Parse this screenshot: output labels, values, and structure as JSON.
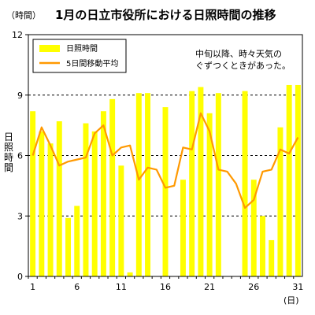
{
  "chart_data": {
    "type": "bar",
    "title": "1月の日立市役所における日照時間の推移",
    "yunit": "（時間）",
    "ylabel": "日照時間",
    "xunit": "(日)",
    "ylim": [
      0,
      12
    ],
    "yticks": [
      0,
      3,
      6,
      9,
      12
    ],
    "xticks": [
      1,
      6,
      11,
      16,
      21,
      26,
      31
    ],
    "gridlines": [
      3,
      6,
      9
    ],
    "legend_position": "top-left",
    "annotation": [
      "中旬以降、時々天気の",
      "ぐずつくときがあった。"
    ],
    "x": [
      1,
      2,
      3,
      4,
      5,
      6,
      7,
      8,
      9,
      10,
      11,
      12,
      13,
      14,
      15,
      16,
      17,
      18,
      19,
      20,
      21,
      22,
      23,
      24,
      25,
      26,
      27,
      28,
      29,
      30,
      31
    ],
    "series": [
      {
        "name": "日照時間",
        "type": "bar",
        "color": "#ffff00",
        "values": [
          8.2,
          7.2,
          6.6,
          7.7,
          2.9,
          3.5,
          7.6,
          7.2,
          8.2,
          8.8,
          5.5,
          0.2,
          9.1,
          9.1,
          0.0,
          8.4,
          0.0,
          4.8,
          9.2,
          9.4,
          8.1,
          9.1,
          0.0,
          0.0,
          9.2,
          4.8,
          3.0,
          1.8,
          7.4,
          9.5,
          9.5
        ]
      },
      {
        "name": "5日間移動平均",
        "type": "line",
        "color": "#ff9900",
        "values": [
          6.0,
          7.4,
          6.5,
          5.5,
          5.7,
          5.8,
          5.9,
          7.1,
          7.5,
          6.0,
          6.4,
          6.5,
          4.8,
          5.4,
          5.3,
          4.4,
          4.5,
          6.4,
          6.3,
          8.1,
          7.2,
          5.3,
          5.2,
          4.6,
          3.4,
          3.8,
          5.2,
          5.3,
          6.3,
          6.1,
          6.9
        ]
      }
    ]
  }
}
